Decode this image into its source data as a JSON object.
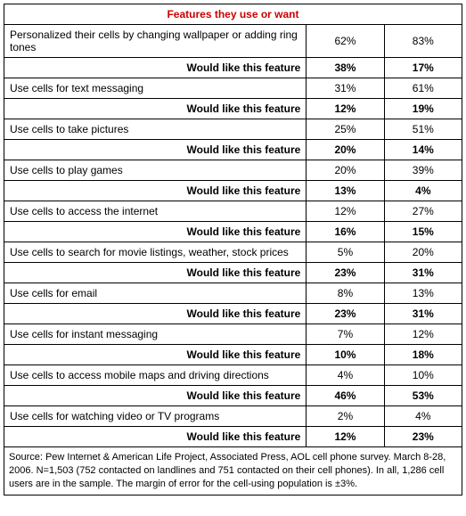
{
  "title": "Features they use or want",
  "title_color": "#cc0000",
  "would_like_label": "Would like this feature",
  "rows": [
    {
      "feature": "Personalized their cells by changing wallpaper or adding ring tones",
      "use_a": "62%",
      "use_b": "83%",
      "want_a": "38%",
      "want_b": "17%"
    },
    {
      "feature": "Use cells for text messaging",
      "use_a": "31%",
      "use_b": "61%",
      "want_a": "12%",
      "want_b": "19%"
    },
    {
      "feature": "Use cells to take pictures",
      "use_a": "25%",
      "use_b": "51%",
      "want_a": "20%",
      "want_b": "14%"
    },
    {
      "feature": "Use cells to play games",
      "use_a": "20%",
      "use_b": "39%",
      "want_a": "13%",
      "want_b": "4%"
    },
    {
      "feature": "Use cells to access the internet",
      "use_a": "12%",
      "use_b": "27%",
      "want_a": "16%",
      "want_b": "15%"
    },
    {
      "feature": "Use cells to search for movie listings, weather, stock prices",
      "use_a": "5%",
      "use_b": "20%",
      "want_a": "23%",
      "want_b": "31%"
    },
    {
      "feature": "Use cells for email",
      "use_a": "8%",
      "use_b": "13%",
      "want_a": "23%",
      "want_b": "31%"
    },
    {
      "feature": "Use cells for instant messaging",
      "use_a": "7%",
      "use_b": "12%",
      "want_a": "10%",
      "want_b": "18%"
    },
    {
      "feature": "Use cells to access mobile maps and driving directions",
      "use_a": "4%",
      "use_b": "10%",
      "want_a": "46%",
      "want_b": "53%"
    },
    {
      "feature": "Use cells for watching video or TV programs",
      "use_a": "2%",
      "use_b": "4%",
      "want_a": "12%",
      "want_b": "23%"
    }
  ],
  "source": "Source:  Pew Internet & American Life Project, Associated Press, AOL cell phone survey. March 8-28, 2006. N=1,503 (752 contacted on landlines and 751 contacted on their cell phones). In all, 1,286 cell users are in the sample. The margin of error for the cell-using population is ±3%."
}
